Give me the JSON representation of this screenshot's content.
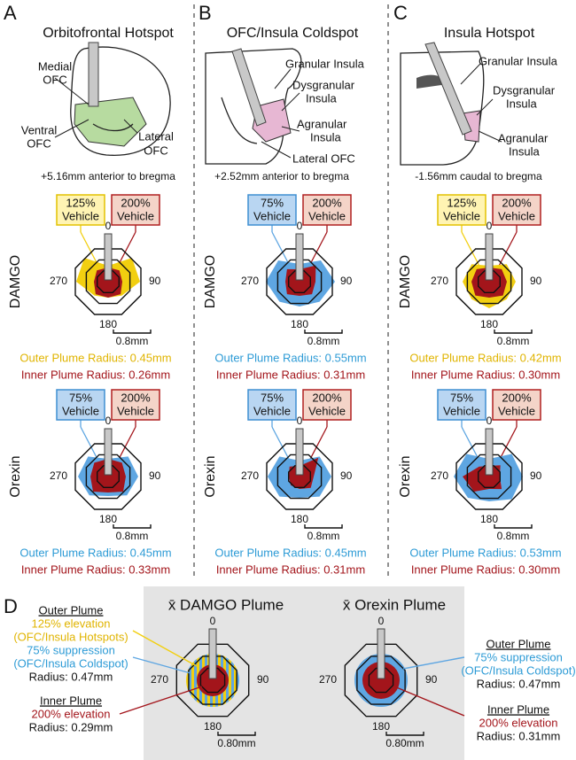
{
  "radar_axis_labels": [
    "0",
    "90",
    "180",
    "270"
  ],
  "panels": [
    {
      "letter": "A",
      "title": "Orbitofrontal Hotspot",
      "brain_labels": [
        [
          "Medial",
          "OFC"
        ],
        [
          "Ventral",
          "OFC"
        ],
        [
          "Lateral",
          "OFC"
        ]
      ],
      "coordinate": "+5.16mm anterior to bregma",
      "plots": [
        {
          "drug": "DAMGO",
          "outer_box": [
            "125%",
            "Vehicle"
          ],
          "inner_box": [
            "200%",
            "Vehicle"
          ],
          "scale": "0.8mm",
          "outer_radius": "Outer Plume Radius: 0.45mm",
          "inner_radius": "Inner Plume Radius: 0.26mm"
        },
        {
          "drug": "Orexin",
          "outer_box": [
            "75%",
            "Vehicle"
          ],
          "inner_box": [
            "200%",
            "Vehicle"
          ],
          "scale": "0.8mm",
          "outer_radius": "Outer Plume Radius: 0.45mm",
          "inner_radius": "Inner Plume Radius: 0.33mm"
        }
      ]
    },
    {
      "letter": "B",
      "title": "OFC/Insula Coldspot",
      "brain_labels": [
        [
          "Granular Insula"
        ],
        [
          "Dysgranular",
          "Insula"
        ],
        [
          "Agranular",
          "Insula"
        ],
        [
          "Lateral OFC"
        ]
      ],
      "coordinate": "+2.52mm anterior to bregma",
      "plots": [
        {
          "drug": "DAMGO",
          "outer_box": [
            "75%",
            "Vehicle"
          ],
          "inner_box": [
            "200%",
            "Vehicle"
          ],
          "scale": "0.8mm",
          "outer_radius": "Outer Plume Radius: 0.55mm",
          "inner_radius": "Inner Plume Radius: 0.31mm"
        },
        {
          "drug": "Orexin",
          "outer_box": [
            "75%",
            "Vehicle"
          ],
          "inner_box": [
            "200%",
            "Vehicle"
          ],
          "scale": "0.8mm",
          "outer_radius": "Outer Plume Radius: 0.45mm",
          "inner_radius": "Inner Plume Radius: 0.31mm"
        }
      ]
    },
    {
      "letter": "C",
      "title": "Insula Hotspot",
      "brain_labels": [
        [
          "Granular Insula"
        ],
        [
          "Dysgranular",
          "Insula"
        ],
        [
          "Agranular",
          "Insula"
        ]
      ],
      "coordinate": "-1.56mm caudal to bregma",
      "plots": [
        {
          "drug": "DAMGO",
          "outer_box": [
            "125%",
            "Vehicle"
          ],
          "inner_box": [
            "200%",
            "Vehicle"
          ],
          "scale": "0.8mm",
          "outer_radius": "Outer Plume Radius: 0.42mm",
          "inner_radius": "Inner Plume Radius: 0.30mm"
        },
        {
          "drug": "Orexin",
          "outer_box": [
            "75%",
            "Vehicle"
          ],
          "inner_box": [
            "200%",
            "Vehicle"
          ],
          "scale": "0.8mm",
          "outer_radius": "Outer Plume Radius: 0.53mm",
          "inner_radius": "Inner Plume Radius: 0.30mm"
        }
      ]
    }
  ],
  "panel_d": {
    "letter": "D",
    "plots": [
      {
        "title": "x̄ DAMGO Plume",
        "scale": "0.80mm",
        "outer": {
          "heading": "Outer Plume",
          "lines": [
            "125% elevation",
            "(OFC/Insula Hotspots)",
            "75% suppression",
            "(OFC/Insula Coldspot)"
          ],
          "radius": "Radius: 0.47mm"
        },
        "inner": {
          "heading": "Inner Plume",
          "lines": [
            "200% elevation"
          ],
          "radius": "Radius: 0.29mm"
        }
      },
      {
        "title": "x̄ Orexin Plume",
        "scale": "0.80mm",
        "outer": {
          "heading": "Outer Plume",
          "lines": [
            "75% suppression",
            "(OFC/Insula Coldspot)"
          ],
          "radius": "Radius: 0.47mm"
        },
        "inner": {
          "heading": "Inner Plume",
          "lines": [
            "200% elevation"
          ],
          "radius": "Radius: 0.31mm"
        }
      }
    ]
  }
}
